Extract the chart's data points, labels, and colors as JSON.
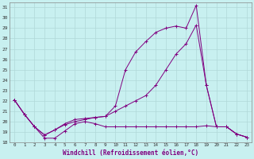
{
  "xlabel": "Windchill (Refroidissement éolien,°C)",
  "xlim": [
    -0.5,
    23.5
  ],
  "ylim": [
    18,
    31.5
  ],
  "yticks": [
    18,
    19,
    20,
    21,
    22,
    23,
    24,
    25,
    26,
    27,
    28,
    29,
    30,
    31
  ],
  "xticks": [
    0,
    1,
    2,
    3,
    4,
    5,
    6,
    7,
    8,
    9,
    10,
    11,
    12,
    13,
    14,
    15,
    16,
    17,
    18,
    19,
    20,
    21,
    22,
    23
  ],
  "bg_color": "#c8f0f0",
  "line_color": "#800080",
  "grid_color": "#b0d8d8",
  "series": [
    [
      22.1,
      20.7,
      19.5,
      18.4,
      18.4,
      19.1,
      19.8,
      20.0,
      19.8,
      19.5,
      19.5,
      19.5,
      19.5,
      19.5,
      19.5,
      19.5,
      19.5,
      19.5,
      19.5,
      19.6,
      19.5,
      19.5,
      18.8,
      18.5
    ],
    [
      22.1,
      20.7,
      19.5,
      18.7,
      19.2,
      19.7,
      20.0,
      20.2,
      20.4,
      20.5,
      21.0,
      21.5,
      22.0,
      22.5,
      23.5,
      25.0,
      26.5,
      27.5,
      29.3,
      23.5,
      19.5,
      19.5,
      18.8,
      18.5
    ],
    [
      22.1,
      20.7,
      19.5,
      18.7,
      19.2,
      19.8,
      20.2,
      20.3,
      20.4,
      20.5,
      21.5,
      25.0,
      26.7,
      27.7,
      28.6,
      29.0,
      29.2,
      29.0,
      31.2,
      23.5,
      19.5,
      19.5,
      18.8,
      18.5
    ]
  ]
}
